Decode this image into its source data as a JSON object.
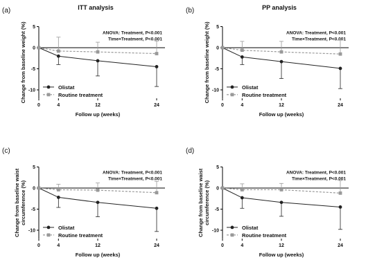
{
  "colors": {
    "olistat": "#222222",
    "routine": "#999999"
  },
  "chart_data": [
    {
      "type": "line",
      "panel_label": "(a)",
      "title": "ITT analysis",
      "xlabel": "Follow up (weeks)",
      "ylabel": [
        "Change from baseline weight (%)"
      ],
      "annotation": [
        "ANOVA: Treatment, P<0.001",
        "Time×Treatment, P<0.001"
      ],
      "x": [
        0,
        4,
        12,
        24
      ],
      "x_ticks": [
        "0",
        "4",
        "12",
        "24"
      ],
      "y_ticks": [
        "5",
        "0",
        "-5",
        "-10"
      ],
      "ylim": [
        -12,
        5
      ],
      "legend_position": "bottom-left",
      "series": [
        {
          "name": "Olistat",
          "marker": "circle",
          "values": [
            0,
            -2.0,
            -3.1,
            -4.5
          ],
          "err": [
            0,
            2.0,
            3.6,
            4.7
          ]
        },
        {
          "name": "Routine treatment",
          "marker": "square",
          "values": [
            0,
            -0.8,
            -1.0,
            -1.4
          ],
          "err": [
            0,
            3.3,
            2.3,
            3.0
          ]
        }
      ]
    },
    {
      "type": "line",
      "panel_label": "(b)",
      "title": "PP analysis",
      "xlabel": "Follow up (weeks)",
      "ylabel": [
        "Change from baseline weight (%)"
      ],
      "annotation": [
        "ANOVA: Treatment, P<0.001",
        "Time×Treatment, P<0.001"
      ],
      "x": [
        0,
        4,
        12,
        24
      ],
      "x_ticks": [
        "0",
        "4",
        "12",
        "24"
      ],
      "y_ticks": [
        "5",
        "0",
        "-5",
        "-10"
      ],
      "ylim": [
        -12,
        5
      ],
      "legend_position": "bottom-left",
      "series": [
        {
          "name": "Olistat",
          "marker": "circle",
          "values": [
            0,
            -2.2,
            -3.3,
            -4.9
          ],
          "err": [
            0,
            1.8,
            4.0,
            4.8
          ]
        },
        {
          "name": "Routine treatment",
          "marker": "square",
          "values": [
            0,
            -0.6,
            -1.0,
            -1.5
          ],
          "err": [
            0,
            2.1,
            2.5,
            3.3
          ]
        }
      ]
    },
    {
      "type": "line",
      "panel_label": "(c)",
      "title": "",
      "xlabel": "Follow up (weeks)",
      "ylabel": [
        "Change from baseline waist",
        "circumference (%)"
      ],
      "annotation": [
        "ANOVA: Treatment, P<0.001",
        "Time×Treatment, P<0.001"
      ],
      "x": [
        0,
        4,
        12,
        24
      ],
      "x_ticks": [
        "0",
        "4",
        "12",
        "24"
      ],
      "y_ticks": [
        "5",
        "0",
        "-5",
        "-10"
      ],
      "ylim": [
        -12,
        5
      ],
      "legend_position": "bottom-left",
      "series": [
        {
          "name": "Olistat",
          "marker": "circle",
          "values": [
            0,
            -2.2,
            -3.4,
            -4.8
          ],
          "err": [
            0,
            2.4,
            3.4,
            5.5
          ]
        },
        {
          "name": "Routine treatment",
          "marker": "square",
          "values": [
            0,
            -0.4,
            -0.5,
            -1.1
          ],
          "err": [
            0,
            1.3,
            1.7,
            2.7
          ]
        }
      ]
    },
    {
      "type": "line",
      "panel_label": "(d)",
      "title": "",
      "xlabel": "Follow up (weeks)",
      "ylabel": [
        "Change from baseline waist",
        "circumference (%)"
      ],
      "annotation": [
        "ANOVA: Treatment, P<0.001",
        "Time×Treatment, P<0.001"
      ],
      "x": [
        0,
        4,
        12,
        24
      ],
      "x_ticks": [
        "0",
        "4",
        "12",
        "24"
      ],
      "y_ticks": [
        "5",
        "0",
        "-5",
        "-10"
      ],
      "ylim": [
        -12,
        5
      ],
      "legend_position": "bottom-left",
      "series": [
        {
          "name": "Olistat",
          "marker": "circle",
          "values": [
            0,
            -2.3,
            -3.4,
            -4.5
          ],
          "err": [
            0,
            2.5,
            3.3,
            5.3
          ]
        },
        {
          "name": "Routine treatment",
          "marker": "square",
          "values": [
            0,
            -0.4,
            -0.4,
            -1.2
          ],
          "err": [
            0,
            1.4,
            1.5,
            3.0
          ]
        }
      ]
    }
  ]
}
